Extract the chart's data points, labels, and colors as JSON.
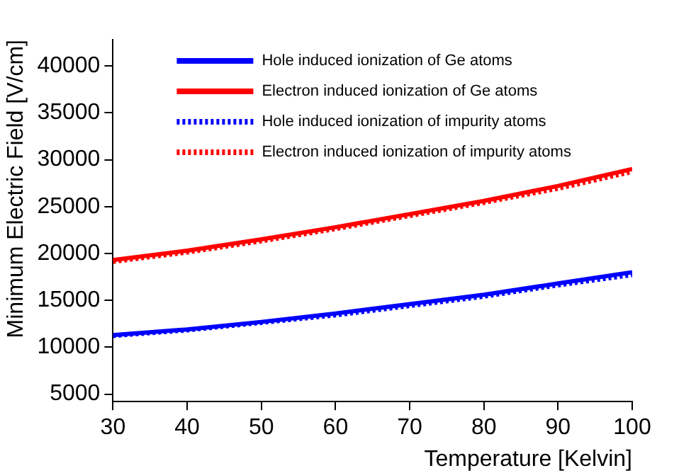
{
  "chart_data": {
    "type": "line",
    "xlabel": "Temperature [Kelvin]",
    "ylabel": "Minimum Electric Field [V/cm]",
    "x": [
      30,
      40,
      50,
      60,
      70,
      80,
      90,
      100
    ],
    "series": [
      {
        "name": "Hole induced ionization of Ge atoms",
        "color": "#0000ff",
        "line_style": "solid",
        "values": [
          11300,
          11900,
          12700,
          13600,
          14600,
          15600,
          16800,
          18000
        ]
      },
      {
        "name": "Electron induced ionization of Ge atoms",
        "color": "#ff0000",
        "line_style": "solid",
        "values": [
          19300,
          20300,
          21500,
          22800,
          24200,
          25600,
          27200,
          29000
        ]
      },
      {
        "name": "Hole induced ionization of impurity atoms",
        "color": "#0000ff",
        "line_style": "dotted",
        "values": [
          11200,
          11800,
          12600,
          13400,
          14400,
          15400,
          16600,
          17700
        ]
      },
      {
        "name": "Electron induced ionization of impurity atoms",
        "color": "#ff0000",
        "line_style": "dotted",
        "values": [
          19100,
          20100,
          21300,
          22600,
          24000,
          25400,
          26900,
          28700
        ]
      }
    ],
    "xlim": [
      30,
      100
    ],
    "xticks": [
      30,
      40,
      50,
      60,
      70,
      80,
      90,
      100
    ],
    "ylim": [
      4200,
      42800
    ],
    "yticks": [
      5000,
      10000,
      15000,
      20000,
      25000,
      30000,
      35000,
      40000
    ],
    "grid": false,
    "legend": "top left",
    "marker": "none"
  }
}
